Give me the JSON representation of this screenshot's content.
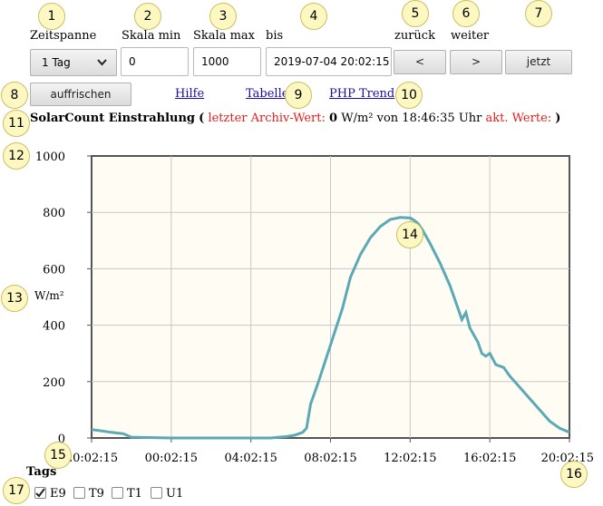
{
  "markers": [
    "1",
    "2",
    "3",
    "4",
    "5",
    "6",
    "7",
    "8",
    "9",
    "10",
    "11",
    "12",
    "13",
    "14",
    "15",
    "16",
    "17"
  ],
  "controls": {
    "zeitspanne_label": "Zeitspanne",
    "zeitspanne_value": "1 Tag",
    "skala_min_label": "Skala min",
    "skala_min_value": "0",
    "skala_max_label": "Skala max",
    "skala_max_value": "1000",
    "bis_label": "bis",
    "bis_value": "2019-07-04 20:02:15",
    "zurueck_label": "zurück",
    "weiter_label": "weiter",
    "prev_button": "<",
    "next_button": ">",
    "jetzt_button": "jetzt",
    "refresh_button": "auffrischen"
  },
  "links": {
    "hilfe": "Hilfe",
    "tabelle": "Tabelle",
    "php_trend": "PHP Trend"
  },
  "header": {
    "title": "SolarCount Einstrahlung",
    "open_paren": "(",
    "archive_label": "letzter Archiv-Wert:",
    "archive_value": "0",
    "unit_from": "W/m² von 18:46:35 Uhr",
    "current_label": "akt. Werte:",
    "close_paren": ")"
  },
  "colors": {
    "red_text": "#e0201c",
    "plot_bg": "#fefcf3",
    "series": "#5aa9b5",
    "link": "#1a0dab"
  },
  "chart_data": {
    "type": "line",
    "ylabel": "W/m²",
    "ylim": [
      0,
      1000
    ],
    "yticks": [
      "0",
      "200",
      "400",
      "600",
      "800",
      "1000"
    ],
    "xticks": [
      "20:02:15",
      "00:02:15",
      "04:02:15",
      "08:02:15",
      "12:02:15",
      "16:02:15",
      "20:02:15"
    ],
    "xlim_hours": [
      0,
      24
    ],
    "grid": true,
    "series": [
      {
        "x": [
          0,
          0.5,
          1.0,
          1.6,
          2.0,
          4.0,
          6.0,
          8.0,
          9.0,
          9.8,
          10.2,
          10.6,
          10.8,
          11.0,
          11.4,
          12.0,
          12.6,
          13.0,
          13.5,
          14.0,
          14.5,
          15.0,
          15.5,
          16.0,
          16.2,
          16.4,
          16.6,
          17.0,
          17.5,
          18.0,
          18.4,
          18.6,
          18.8,
          19.0,
          19.4,
          19.6,
          19.8,
          20.0,
          20.3,
          20.7,
          21.0,
          21.5,
          22.0,
          22.5,
          23.0,
          23.5,
          24.0
        ],
        "y": [
          30,
          25,
          20,
          15,
          3,
          0,
          0,
          0,
          0,
          5,
          10,
          20,
          35,
          120,
          200,
          330,
          460,
          570,
          650,
          710,
          750,
          775,
          782,
          780,
          772,
          760,
          740,
          690,
          620,
          540,
          460,
          420,
          445,
          390,
          340,
          300,
          290,
          300,
          260,
          250,
          220,
          180,
          140,
          100,
          60,
          35,
          20
        ]
      }
    ]
  },
  "tags": {
    "heading": "Tags",
    "items": [
      {
        "label": "E9",
        "checked": true
      },
      {
        "label": "T9",
        "checked": false
      },
      {
        "label": "T1",
        "checked": false
      },
      {
        "label": "U1",
        "checked": false
      }
    ]
  }
}
